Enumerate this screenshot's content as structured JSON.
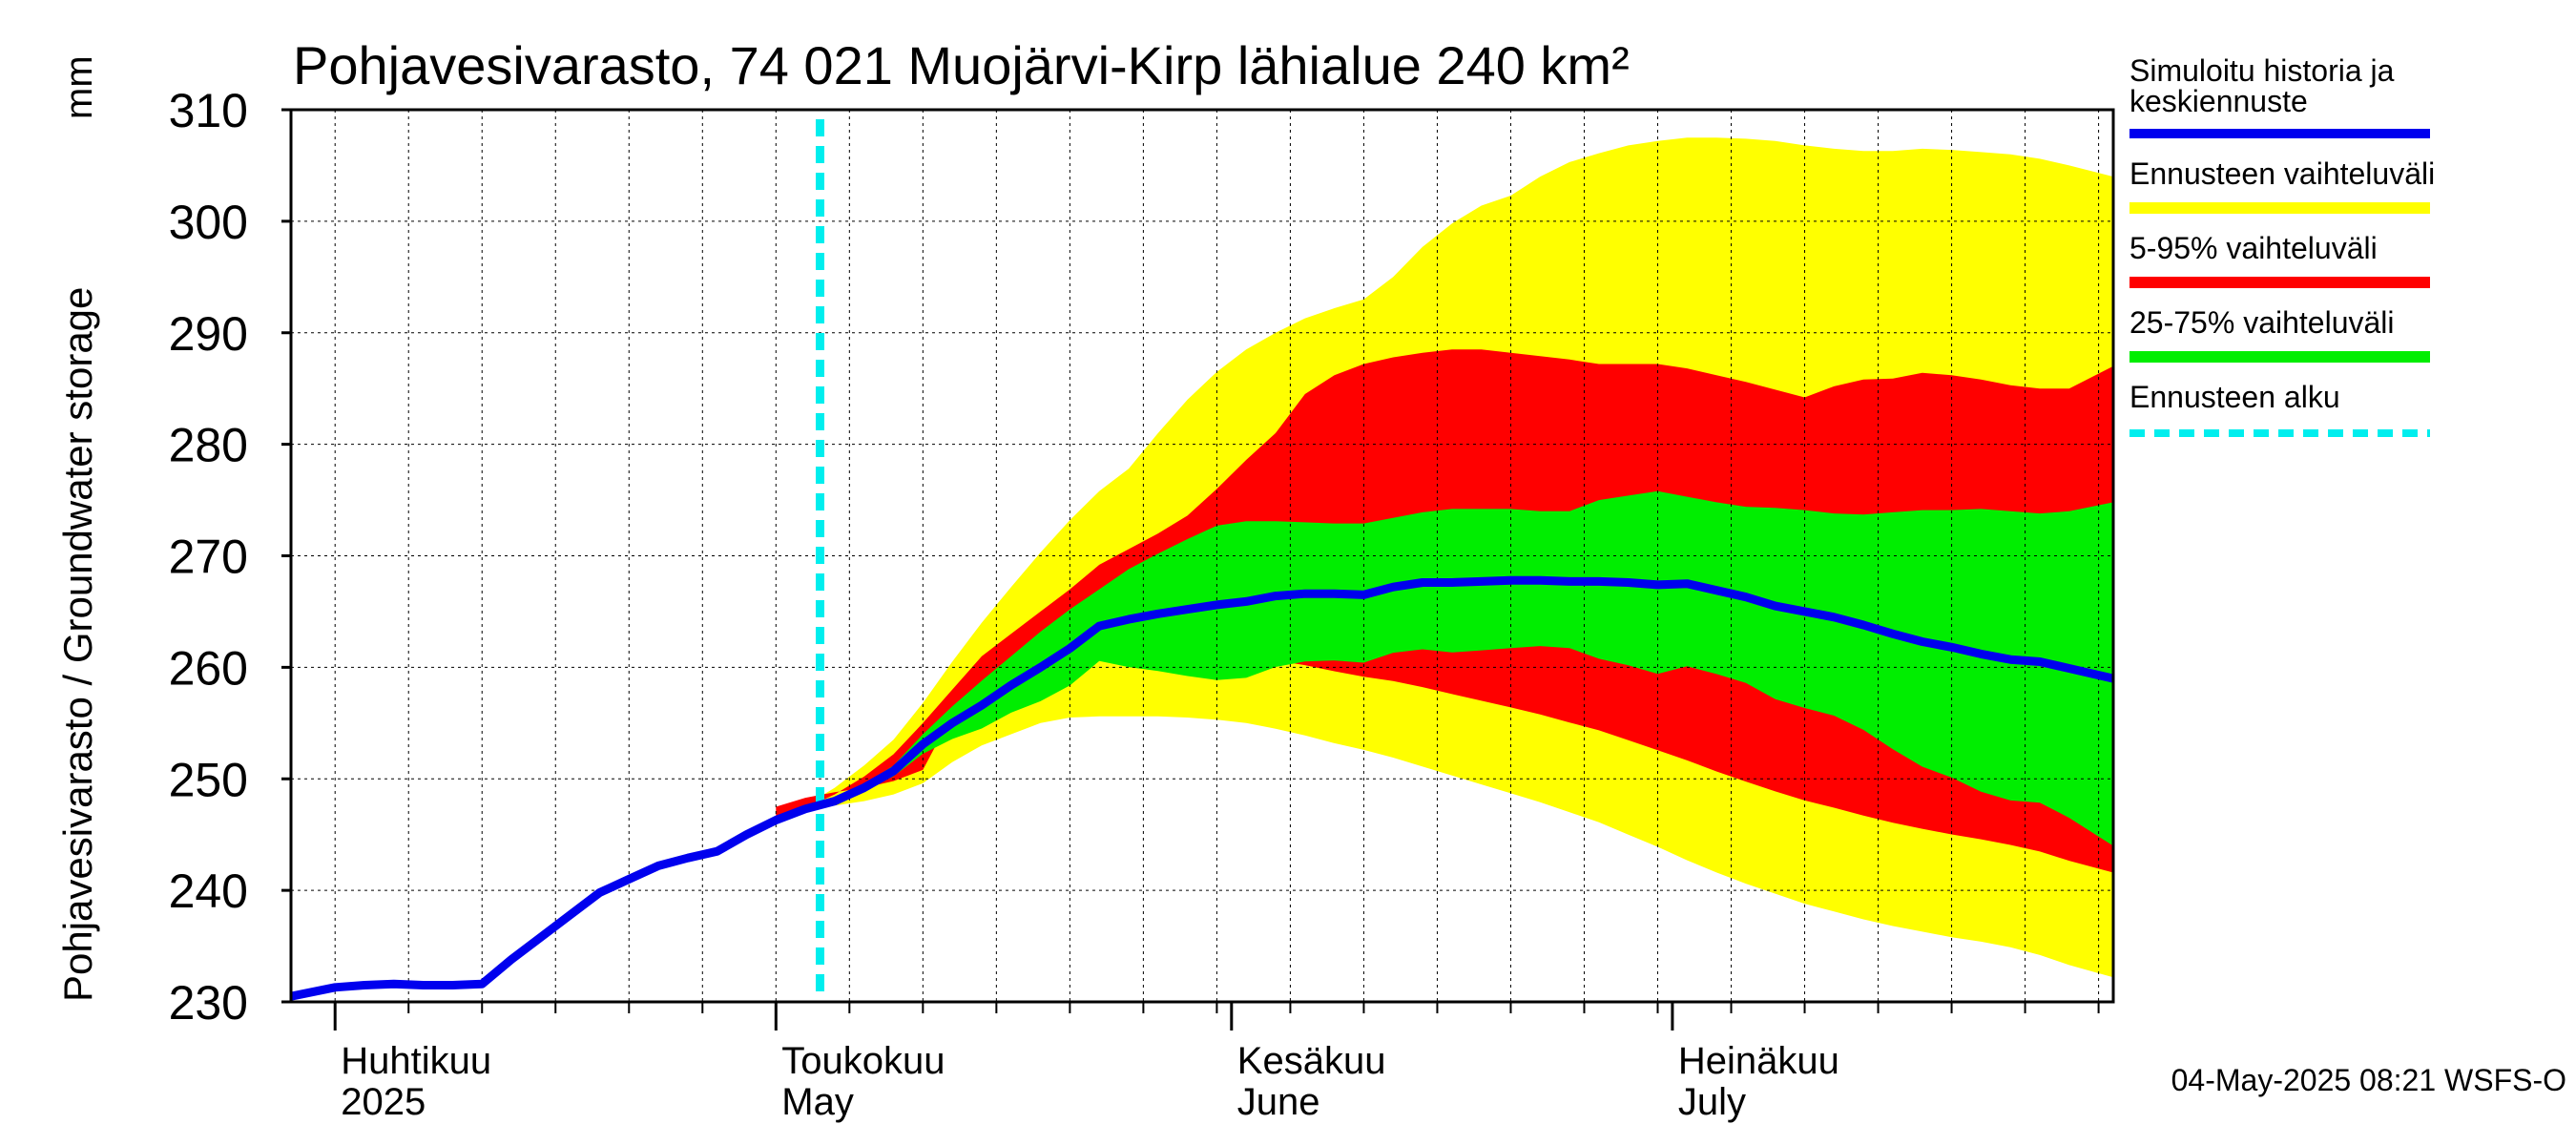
{
  "chart_data": {
    "type": "area",
    "title": "Pohjavesivarasto, 74 021 Muojärvi-Kirp lähialue 240 km²",
    "ylabel": "Pohjavesivarasto / Groundwater storage",
    "yunit": "mm",
    "ylim": [
      230,
      310
    ],
    "yticks": [
      230,
      240,
      250,
      260,
      270,
      280,
      290,
      300,
      310
    ],
    "grid": true,
    "x_start": "2025-03-29",
    "x_end": "2025-07-31",
    "forecast_start": "2025-05-04",
    "month_labels": [
      {
        "date": "2025-04-01",
        "fi": "Huhtikuu",
        "en": "2025"
      },
      {
        "date": "2025-05-01",
        "fi": "Toukokuu",
        "en": "May"
      },
      {
        "date": "2025-06-01",
        "fi": "Kesäkuu",
        "en": "June"
      },
      {
        "date": "2025-07-01",
        "fi": "Heinäkuu",
        "en": "July"
      }
    ],
    "series": [
      {
        "name": "Simuloitu historia ja keskiennuste",
        "color": "#0000ee",
        "type": "line",
        "dates": [
          "2025-03-29",
          "2025-04-01",
          "2025-04-03",
          "2025-04-05",
          "2025-04-07",
          "2025-04-09",
          "2025-04-11",
          "2025-04-13",
          "2025-04-15",
          "2025-04-17",
          "2025-04-19",
          "2025-04-21",
          "2025-04-23",
          "2025-04-25",
          "2025-04-27",
          "2025-04-29",
          "2025-05-01",
          "2025-05-03",
          "2025-05-05",
          "2025-05-07",
          "2025-05-09",
          "2025-05-11",
          "2025-05-13",
          "2025-05-15",
          "2025-05-17",
          "2025-05-19",
          "2025-05-21",
          "2025-05-23",
          "2025-05-25",
          "2025-05-27",
          "2025-05-29",
          "2025-05-31",
          "2025-06-02",
          "2025-06-04",
          "2025-06-06",
          "2025-06-08",
          "2025-06-10",
          "2025-06-12",
          "2025-06-14",
          "2025-06-16",
          "2025-06-18",
          "2025-06-20",
          "2025-06-22",
          "2025-06-24",
          "2025-06-26",
          "2025-06-28",
          "2025-06-30",
          "2025-07-02",
          "2025-07-04",
          "2025-07-06",
          "2025-07-08",
          "2025-07-10",
          "2025-07-12",
          "2025-07-14",
          "2025-07-16",
          "2025-07-18",
          "2025-07-20",
          "2025-07-22",
          "2025-07-24",
          "2025-07-26",
          "2025-07-28",
          "2025-07-31"
        ],
        "values": [
          230.5,
          231.3,
          231.5,
          231.6,
          231.5,
          231.5,
          231.6,
          233.8,
          235.8,
          237.8,
          239.8,
          241.0,
          242.2,
          242.9,
          243.5,
          245.0,
          246.3,
          247.3,
          248.0,
          249.2,
          250.7,
          253.1,
          255.0,
          256.6,
          258.4,
          260.0,
          261.7,
          263.7,
          264.3,
          264.8,
          265.2,
          265.6,
          265.9,
          266.4,
          266.6,
          266.6,
          266.5,
          267.2,
          267.6,
          267.6,
          267.7,
          267.8,
          267.8,
          267.7,
          267.7,
          267.6,
          267.4,
          267.5,
          266.9,
          266.3,
          265.5,
          265.0,
          264.5,
          263.8,
          263.0,
          262.3,
          261.8,
          261.2,
          260.7,
          260.5,
          259.9,
          259.0
        ]
      },
      {
        "name": "Ennusteen vaihteluväli",
        "color": "#ffff00",
        "type": "band",
        "dates": [
          "2025-05-01",
          "2025-05-03",
          "2025-05-05",
          "2025-05-07",
          "2025-05-09",
          "2025-05-11",
          "2025-05-13",
          "2025-05-15",
          "2025-05-17",
          "2025-05-19",
          "2025-05-21",
          "2025-05-23",
          "2025-05-25",
          "2025-05-27",
          "2025-05-29",
          "2025-05-31",
          "2025-06-02",
          "2025-06-04",
          "2025-06-06",
          "2025-06-08",
          "2025-06-10",
          "2025-06-12",
          "2025-06-14",
          "2025-06-16",
          "2025-06-18",
          "2025-06-20",
          "2025-06-22",
          "2025-06-24",
          "2025-06-26",
          "2025-06-28",
          "2025-06-30",
          "2025-07-02",
          "2025-07-04",
          "2025-07-06",
          "2025-07-08",
          "2025-07-10",
          "2025-07-12",
          "2025-07-14",
          "2025-07-16",
          "2025-07-18",
          "2025-07-20",
          "2025-07-22",
          "2025-07-24",
          "2025-07-26",
          "2025-07-28",
          "2025-07-31"
        ],
        "upper": [
          246.3,
          247.6,
          249.2,
          251.2,
          253.5,
          256.8,
          260.5,
          264.0,
          267.2,
          270.3,
          273.2,
          275.8,
          277.8,
          281.0,
          284.0,
          286.5,
          288.5,
          290.0,
          291.3,
          292.2,
          293.0,
          295.0,
          297.7,
          299.8,
          301.4,
          302.3,
          304.0,
          305.3,
          306.1,
          306.8,
          307.2,
          307.5,
          307.5,
          307.4,
          307.2,
          306.8,
          306.5,
          306.3,
          306.3,
          306.5,
          306.4,
          306.2,
          306.0,
          305.6,
          305.0,
          304.0
        ],
        "lower": [
          246.3,
          247.1,
          247.6,
          248.0,
          248.6,
          249.6,
          251.5,
          253.0,
          254.0,
          255.0,
          255.5,
          255.6,
          255.6,
          255.6,
          255.5,
          255.3,
          255.0,
          254.5,
          253.9,
          253.2,
          252.6,
          251.9,
          251.1,
          250.3,
          249.5,
          248.7,
          247.9,
          247.0,
          246.1,
          245.0,
          243.9,
          242.7,
          241.6,
          240.6,
          239.7,
          238.8,
          238.1,
          237.4,
          236.8,
          236.3,
          235.8,
          235.4,
          234.9,
          234.2,
          233.3,
          232.2
        ]
      },
      {
        "name": "5-95% vaihteluväli",
        "color": "#ff0000",
        "type": "band",
        "dates": [
          "2025-05-01",
          "2025-05-03",
          "2025-05-05",
          "2025-05-07",
          "2025-05-09",
          "2025-05-11",
          "2025-05-13",
          "2025-05-15",
          "2025-05-17",
          "2025-05-19",
          "2025-05-21",
          "2025-05-23",
          "2025-05-25",
          "2025-05-27",
          "2025-05-29",
          "2025-05-31",
          "2025-06-02",
          "2025-06-04",
          "2025-06-06",
          "2025-06-08",
          "2025-06-10",
          "2025-06-12",
          "2025-06-14",
          "2025-06-16",
          "2025-06-18",
          "2025-06-20",
          "2025-06-22",
          "2025-06-24",
          "2025-06-26",
          "2025-06-28",
          "2025-06-30",
          "2025-07-02",
          "2025-07-04",
          "2025-07-06",
          "2025-07-08",
          "2025-07-10",
          "2025-07-12",
          "2025-07-14",
          "2025-07-16",
          "2025-07-18",
          "2025-07-20",
          "2025-07-22",
          "2025-07-24",
          "2025-07-26",
          "2025-07-28",
          "2025-07-31"
        ],
        "upper": [
          246.3,
          247.4,
          248.6,
          250.2,
          252.2,
          255.0,
          258.0,
          261.0,
          263.0,
          265.0,
          267.0,
          269.2,
          270.6,
          272.0,
          273.6,
          276.0,
          278.6,
          281.0,
          284.5,
          286.2,
          287.2,
          287.8,
          288.2,
          288.5,
          288.5,
          288.2,
          287.9,
          287.6,
          287.2,
          287.2,
          287.2,
          286.8,
          286.2,
          285.6,
          284.9,
          284.2,
          285.2,
          285.8,
          285.9,
          286.4,
          286.2,
          285.8,
          285.3,
          285.0,
          285.0,
          287.0
        ]
      },
      {
        "name": "25-75% vaihteluväli",
        "color": "#00ee00",
        "type": "band",
        "dates": [
          "2025-05-01",
          "2025-05-03",
          "2025-05-05",
          "2025-05-07",
          "2025-05-09",
          "2025-05-11",
          "2025-05-13",
          "2025-05-15",
          "2025-05-17",
          "2025-05-19",
          "2025-05-21",
          "2025-05-23",
          "2025-05-25",
          "2025-05-27",
          "2025-05-29",
          "2025-05-31",
          "2025-06-02",
          "2025-06-04",
          "2025-06-06",
          "2025-06-08",
          "2025-06-10",
          "2025-06-12",
          "2025-06-14",
          "2025-06-16",
          "2025-06-18",
          "2025-06-20",
          "2025-06-22",
          "2025-06-24",
          "2025-06-26",
          "2025-06-28",
          "2025-06-30",
          "2025-07-02",
          "2025-07-04",
          "2025-07-06",
          "2025-07-08",
          "2025-07-10",
          "2025-07-12",
          "2025-07-14",
          "2025-07-16",
          "2025-07-18",
          "2025-07-20",
          "2025-07-22",
          "2025-07-24",
          "2025-07-26",
          "2025-07-28",
          "2025-07-31"
        ],
        "upper": [
          246.3,
          247.3,
          248.2,
          249.5,
          251.2,
          254.0,
          256.5,
          258.8,
          261.0,
          263.2,
          265.2,
          267.0,
          268.8,
          270.2,
          271.5,
          272.7,
          273.1,
          273.1,
          273.0,
          272.9,
          272.9,
          273.4,
          273.9,
          274.2,
          274.2,
          274.2,
          274.0,
          274.0,
          275.0,
          275.4,
          275.8,
          275.3,
          274.8,
          274.4,
          274.3,
          274.1,
          273.8,
          273.7,
          273.9,
          274.1,
          274.1,
          274.2,
          274.0,
          273.8,
          274.0,
          274.8
        ]
      }
    ]
  },
  "legend": {
    "items": [
      {
        "line1": "Simuloitu historia ja",
        "line2": "keskiennuste"
      },
      {
        "line1": "Ennusteen vaihteluväli"
      },
      {
        "line1": "5-95% vaihteluväli"
      },
      {
        "line1": "25-75% vaihteluväli"
      },
      {
        "line1": "Ennusteen alku",
        "color": "#00eeee"
      }
    ]
  },
  "footer": {
    "timestamp": "04-May-2025 08:21 WSFS-O"
  }
}
